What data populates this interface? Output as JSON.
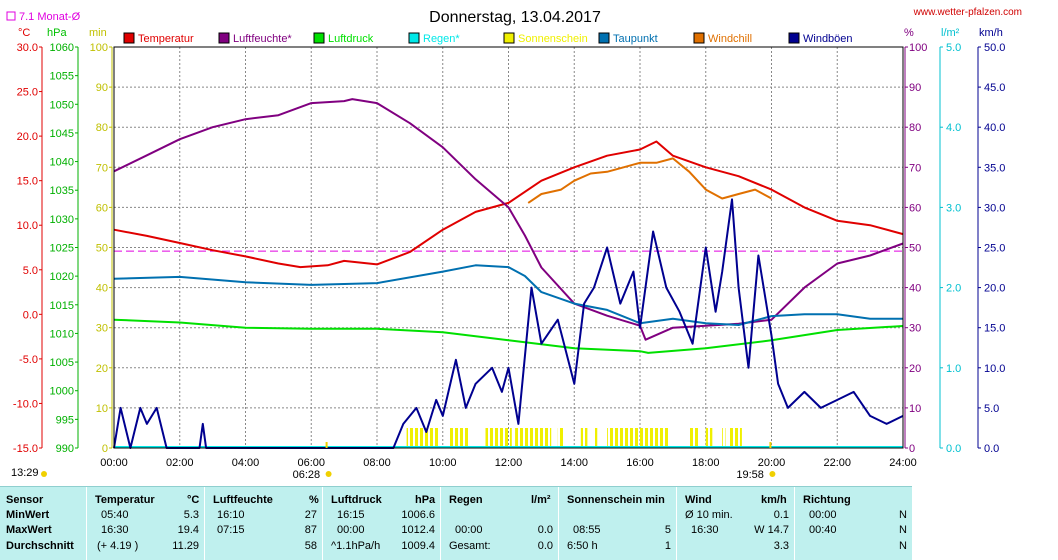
{
  "header": {
    "title": "Donnerstag, 13.04.2017",
    "site": "www.wetter-pfalzen.com",
    "monat_label": "7.1 Monat-Ø",
    "unit_c": "°C",
    "unit_hpa": "hPa",
    "unit_min": "min",
    "unit_pct": "%",
    "unit_lm2": "l/m²",
    "unit_kmh": "km/h"
  },
  "colors": {
    "temp": "#e00000",
    "humidity": "#800080",
    "pressure": "#00e000",
    "rain": "#00e8e8",
    "sun": "#f0f000",
    "dew": "#0070b0",
    "windchill": "#e07000",
    "gust": "#000090",
    "avg_line": "#e000e0"
  },
  "chart_data": {
    "type": "line",
    "title": "Donnerstag, 13.04.2017",
    "legend": [
      "Temperatur",
      "Luftfeuchte*",
      "Luftdruck",
      "Regen*",
      "Sonnenschein",
      "Taupunkt",
      "Windchill",
      "Windböen"
    ],
    "x_ticks": [
      "00:00",
      "02:00",
      "04:00",
      "06:00",
      "08:00",
      "10:00",
      "12:00",
      "14:00",
      "16:00",
      "18:00",
      "20:00",
      "22:00",
      "24:00"
    ],
    "x_range_hours": [
      0,
      24
    ],
    "axes": {
      "temperature_c": {
        "range": [
          -15,
          30
        ],
        "ticks": [
          "30.0",
          "25.0",
          "20.0",
          "15.0",
          "10.0",
          "5.0",
          "0.0",
          "-5.0",
          "-10.0",
          "-15.0"
        ]
      },
      "pressure_hpa": {
        "range": [
          990,
          1060
        ],
        "ticks": [
          "1060",
          "1055",
          "1050",
          "1045",
          "1040",
          "1035",
          "1030",
          "1025",
          "1020",
          "1015",
          "1010",
          "1005",
          "1000",
          "995",
          "990"
        ]
      },
      "sunshine_min": {
        "range": [
          0,
          100
        ],
        "ticks": [
          "100",
          "90",
          "80",
          "70",
          "60",
          "50",
          "40",
          "30",
          "20",
          "10",
          "0"
        ]
      },
      "humidity_pct": {
        "range": [
          0,
          100
        ],
        "ticks": [
          "100",
          "90",
          "80",
          "70",
          "60",
          "50",
          "40",
          "30",
          "20",
          "10",
          "0"
        ]
      },
      "rain_lm2": {
        "range": [
          0,
          5
        ],
        "ticks": [
          "5.0",
          "4.0",
          "3.0",
          "2.0",
          "1.0",
          "0.0"
        ]
      },
      "wind_kmh": {
        "range": [
          0,
          50
        ],
        "ticks": [
          "50.0",
          "45.0",
          "40.0",
          "35.0",
          "30.0",
          "25.0",
          "20.0",
          "15.0",
          "10.0",
          "5.0",
          "0.0"
        ]
      }
    },
    "monthly_avg_temp_c": 7.1,
    "sunrise": "06:28",
    "sunset": "19:58",
    "sunrise_left": "13:29",
    "series": [
      {
        "name": "Temperatur",
        "axis": "temperature_c",
        "points": [
          [
            0,
            9.5
          ],
          [
            1,
            8.8
          ],
          [
            2,
            8.0
          ],
          [
            3,
            7.2
          ],
          [
            4,
            6.5
          ],
          [
            5,
            5.7
          ],
          [
            5.67,
            5.3
          ],
          [
            6.5,
            5.5
          ],
          [
            7,
            6.0
          ],
          [
            8,
            5.6
          ],
          [
            9,
            7.0
          ],
          [
            10,
            9.5
          ],
          [
            11,
            11.5
          ],
          [
            12,
            12.5
          ],
          [
            13,
            15.0
          ],
          [
            14,
            16.5
          ],
          [
            15,
            17.8
          ],
          [
            16,
            18.5
          ],
          [
            16.5,
            19.4
          ],
          [
            17,
            17.8
          ],
          [
            18,
            16.5
          ],
          [
            19,
            15.5
          ],
          [
            20,
            14.0
          ],
          [
            21,
            12.0
          ],
          [
            22,
            10.5
          ],
          [
            23,
            10.0
          ],
          [
            24,
            9.0
          ]
        ]
      },
      {
        "name": "Luftfeuchte*",
        "axis": "humidity_pct",
        "points": [
          [
            0,
            69
          ],
          [
            1,
            73
          ],
          [
            2,
            77
          ],
          [
            3,
            80
          ],
          [
            4,
            82
          ],
          [
            5,
            83
          ],
          [
            6,
            86
          ],
          [
            7,
            86.5
          ],
          [
            7.25,
            87
          ],
          [
            8,
            86
          ],
          [
            9,
            81
          ],
          [
            10,
            75
          ],
          [
            11,
            67
          ],
          [
            12,
            60
          ],
          [
            12.5,
            53
          ],
          [
            13,
            45
          ],
          [
            14,
            36
          ],
          [
            15,
            33
          ],
          [
            16,
            30.5
          ],
          [
            16.17,
            27
          ],
          [
            17,
            30
          ],
          [
            18,
            30.5
          ],
          [
            19,
            31
          ],
          [
            20,
            32
          ],
          [
            21,
            40
          ],
          [
            22,
            46
          ],
          [
            23,
            48
          ],
          [
            24,
            51
          ]
        ]
      },
      {
        "name": "Luftdruck",
        "axis": "pressure_hpa",
        "points": [
          [
            0,
            1012.4
          ],
          [
            2,
            1011.9
          ],
          [
            4,
            1011.0
          ],
          [
            6,
            1010.8
          ],
          [
            8,
            1010.8
          ],
          [
            10,
            1010.2
          ],
          [
            12,
            1008.8
          ],
          [
            14,
            1007.4
          ],
          [
            16,
            1006.9
          ],
          [
            16.25,
            1006.6
          ],
          [
            18,
            1007.4
          ],
          [
            20,
            1008.8
          ],
          [
            22,
            1010.6
          ],
          [
            24,
            1011.3
          ]
        ]
      },
      {
        "name": "Taupunkt",
        "axis": "temperature_c",
        "points": [
          [
            0,
            4.0
          ],
          [
            2,
            4.2
          ],
          [
            4,
            3.6
          ],
          [
            6,
            3.3
          ],
          [
            8,
            3.5
          ],
          [
            10,
            4.8
          ],
          [
            11,
            5.5
          ],
          [
            12,
            5.3
          ],
          [
            12.5,
            4.3
          ],
          [
            13,
            2.5
          ],
          [
            14,
            1.2
          ],
          [
            15,
            0.5
          ],
          [
            16,
            -1.0
          ],
          [
            17,
            -0.5
          ],
          [
            18,
            -1.0
          ],
          [
            19,
            -1.2
          ],
          [
            20,
            -0.2
          ],
          [
            21,
            0.0
          ],
          [
            22,
            0.0
          ],
          [
            23,
            -0.5
          ],
          [
            24,
            -0.5
          ]
        ]
      },
      {
        "name": "Windchill",
        "axis": "temperature_c",
        "points": [
          [
            12.6,
            12.5
          ],
          [
            13,
            13.5
          ],
          [
            13.6,
            14.0
          ],
          [
            14,
            15.0
          ],
          [
            14.5,
            15.8
          ],
          [
            15,
            16.0
          ],
          [
            15.5,
            16.5
          ],
          [
            16,
            17.0
          ],
          [
            16.5,
            17.0
          ],
          [
            17,
            17.5
          ],
          [
            17.5,
            16.0
          ],
          [
            18,
            14.0
          ],
          [
            18.5,
            13.0
          ],
          [
            19,
            13.5
          ],
          [
            19.5,
            14.0
          ],
          [
            20,
            13.0
          ]
        ]
      },
      {
        "name": "Windböen",
        "axis": "wind_kmh",
        "points": [
          [
            0,
            0
          ],
          [
            0.2,
            5
          ],
          [
            0.5,
            0
          ],
          [
            0.8,
            5
          ],
          [
            1,
            3
          ],
          [
            1.3,
            5
          ],
          [
            1.6,
            0
          ],
          [
            2,
            0
          ],
          [
            2.6,
            0
          ],
          [
            2.7,
            3
          ],
          [
            2.8,
            0
          ],
          [
            8.5,
            0
          ],
          [
            8.8,
            3
          ],
          [
            9.2,
            5
          ],
          [
            9.5,
            2
          ],
          [
            9.8,
            6
          ],
          [
            10,
            4
          ],
          [
            10.4,
            11
          ],
          [
            10.7,
            5
          ],
          [
            11,
            8
          ],
          [
            11.5,
            10
          ],
          [
            11.8,
            7
          ],
          [
            12,
            10
          ],
          [
            12.3,
            3
          ],
          [
            12.7,
            20
          ],
          [
            13,
            13
          ],
          [
            13.5,
            16
          ],
          [
            14,
            8
          ],
          [
            14.3,
            18
          ],
          [
            14.6,
            20
          ],
          [
            15,
            25
          ],
          [
            15.4,
            18
          ],
          [
            15.8,
            22
          ],
          [
            16,
            15
          ],
          [
            16.4,
            27
          ],
          [
            16.8,
            20
          ],
          [
            17.2,
            17
          ],
          [
            17.6,
            13
          ],
          [
            18,
            25
          ],
          [
            18.3,
            17
          ],
          [
            18.5,
            22
          ],
          [
            18.8,
            31
          ],
          [
            19,
            20
          ],
          [
            19.3,
            10
          ],
          [
            19.6,
            24
          ],
          [
            20,
            14
          ],
          [
            20.2,
            8
          ],
          [
            20.5,
            5
          ],
          [
            21,
            7
          ],
          [
            21.5,
            5
          ],
          [
            22,
            6
          ],
          [
            22.5,
            7
          ],
          [
            23,
            4
          ],
          [
            23.5,
            3
          ],
          [
            24,
            4
          ]
        ]
      }
    ],
    "sunshine_intervals_h": [
      [
        8.9,
        9.9
      ],
      [
        10.2,
        10.8
      ],
      [
        11.3,
        12.1
      ],
      [
        12.2,
        13.3
      ],
      [
        13.5,
        13.7
      ],
      [
        14.2,
        14.4
      ],
      [
        14.6,
        14.7
      ],
      [
        15.0,
        16.9
      ],
      [
        17.5,
        17.8
      ],
      [
        18.0,
        18.2
      ],
      [
        18.5,
        18.6
      ],
      [
        18.7,
        19.1
      ]
    ]
  },
  "stats": {
    "sensor": {
      "header": "Sensor",
      "rows": [
        "MinWert",
        "MaxWert",
        "Durchschnitt"
      ]
    },
    "temperatur": {
      "header": "Temperatur",
      "unit": "°C",
      "rows": [
        [
          "05:40",
          "5.3"
        ],
        [
          "16:30",
          "19.4"
        ],
        [
          "(+ 4.19 )",
          "11.29"
        ]
      ]
    },
    "luftfeuchte": {
      "header": "Luftfeuchte",
      "unit": "%",
      "rows": [
        [
          "16:10",
          "27"
        ],
        [
          "07:15",
          "87"
        ],
        [
          "",
          "58"
        ]
      ]
    },
    "luftdruck": {
      "header": "Luftdruck",
      "unit": "hPa",
      "rows": [
        [
          "16:15",
          "1006.6"
        ],
        [
          "00:00",
          "1012.4"
        ],
        [
          "^1.1hPa/h",
          "1009.4"
        ]
      ]
    },
    "regen": {
      "header": "Regen",
      "unit": "l/m²",
      "rows": [
        [
          "",
          ""
        ],
        [
          "00:00",
          "0.0"
        ],
        [
          "Gesamt:",
          "0.0"
        ]
      ]
    },
    "sonnenschein": {
      "header": "Sonnenschein min",
      "rows": [
        [
          "",
          ""
        ],
        [
          "08:55",
          "5"
        ],
        [
          "6:50 h",
          "1"
        ]
      ]
    },
    "wind": {
      "header": "Wind",
      "unit": "km/h",
      "rows": [
        [
          "Ø 10 min.",
          "0.1"
        ],
        [
          "16:30",
          "W 14.7"
        ],
        [
          "",
          "3.3"
        ]
      ]
    },
    "richtung": {
      "header": "Richtung",
      "rows": [
        [
          "00:00",
          "N"
        ],
        [
          "00:40",
          "N"
        ],
        [
          "",
          "N"
        ]
      ]
    }
  }
}
